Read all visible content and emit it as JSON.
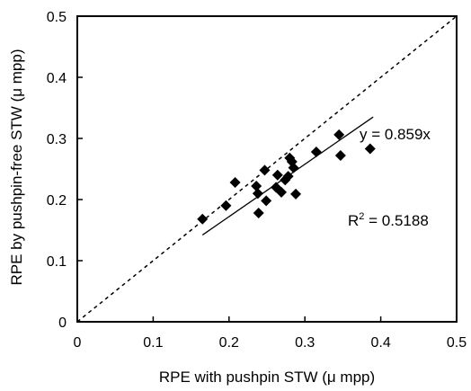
{
  "chart_data": {
    "type": "scatter",
    "title": "",
    "xlabel": "RPE with pushpin STW (μ mpp)",
    "ylabel": "RPE by pushpin-free STW (μ mpp)",
    "xlim": [
      0,
      0.5
    ],
    "ylim": [
      0,
      0.5
    ],
    "xticks": [
      "0",
      "0.1",
      "0.2",
      "0.3",
      "0.4",
      "0.5"
    ],
    "yticks": [
      "0",
      "0.1",
      "0.2",
      "0.3",
      "0.4",
      "0.5"
    ],
    "grid": false,
    "legend": "none",
    "marker": "diamond",
    "points": [
      {
        "x": 0.165,
        "y": 0.168
      },
      {
        "x": 0.196,
        "y": 0.19
      },
      {
        "x": 0.208,
        "y": 0.228
      },
      {
        "x": 0.236,
        "y": 0.222
      },
      {
        "x": 0.238,
        "y": 0.21
      },
      {
        "x": 0.239,
        "y": 0.178
      },
      {
        "x": 0.247,
        "y": 0.248
      },
      {
        "x": 0.249,
        "y": 0.198
      },
      {
        "x": 0.262,
        "y": 0.22
      },
      {
        "x": 0.264,
        "y": 0.24
      },
      {
        "x": 0.269,
        "y": 0.212
      },
      {
        "x": 0.274,
        "y": 0.232
      },
      {
        "x": 0.278,
        "y": 0.238
      },
      {
        "x": 0.28,
        "y": 0.268
      },
      {
        "x": 0.283,
        "y": 0.262
      },
      {
        "x": 0.285,
        "y": 0.252
      },
      {
        "x": 0.288,
        "y": 0.209
      },
      {
        "x": 0.315,
        "y": 0.278
      },
      {
        "x": 0.345,
        "y": 0.306
      },
      {
        "x": 0.347,
        "y": 0.272
      },
      {
        "x": 0.386,
        "y": 0.283
      }
    ],
    "reference_line": {
      "style": "dashed",
      "x": [
        0,
        0.5
      ],
      "y": [
        0,
        0.5
      ]
    },
    "fit_line": {
      "style": "solid",
      "x": [
        0.165,
        0.39
      ],
      "y": [
        0.142,
        0.335
      ]
    },
    "equation_label": "y = 0.859x",
    "r2_label_prefix": "R",
    "r2_label_sup": "2",
    "r2_label_suffix": " = 0.5188"
  }
}
